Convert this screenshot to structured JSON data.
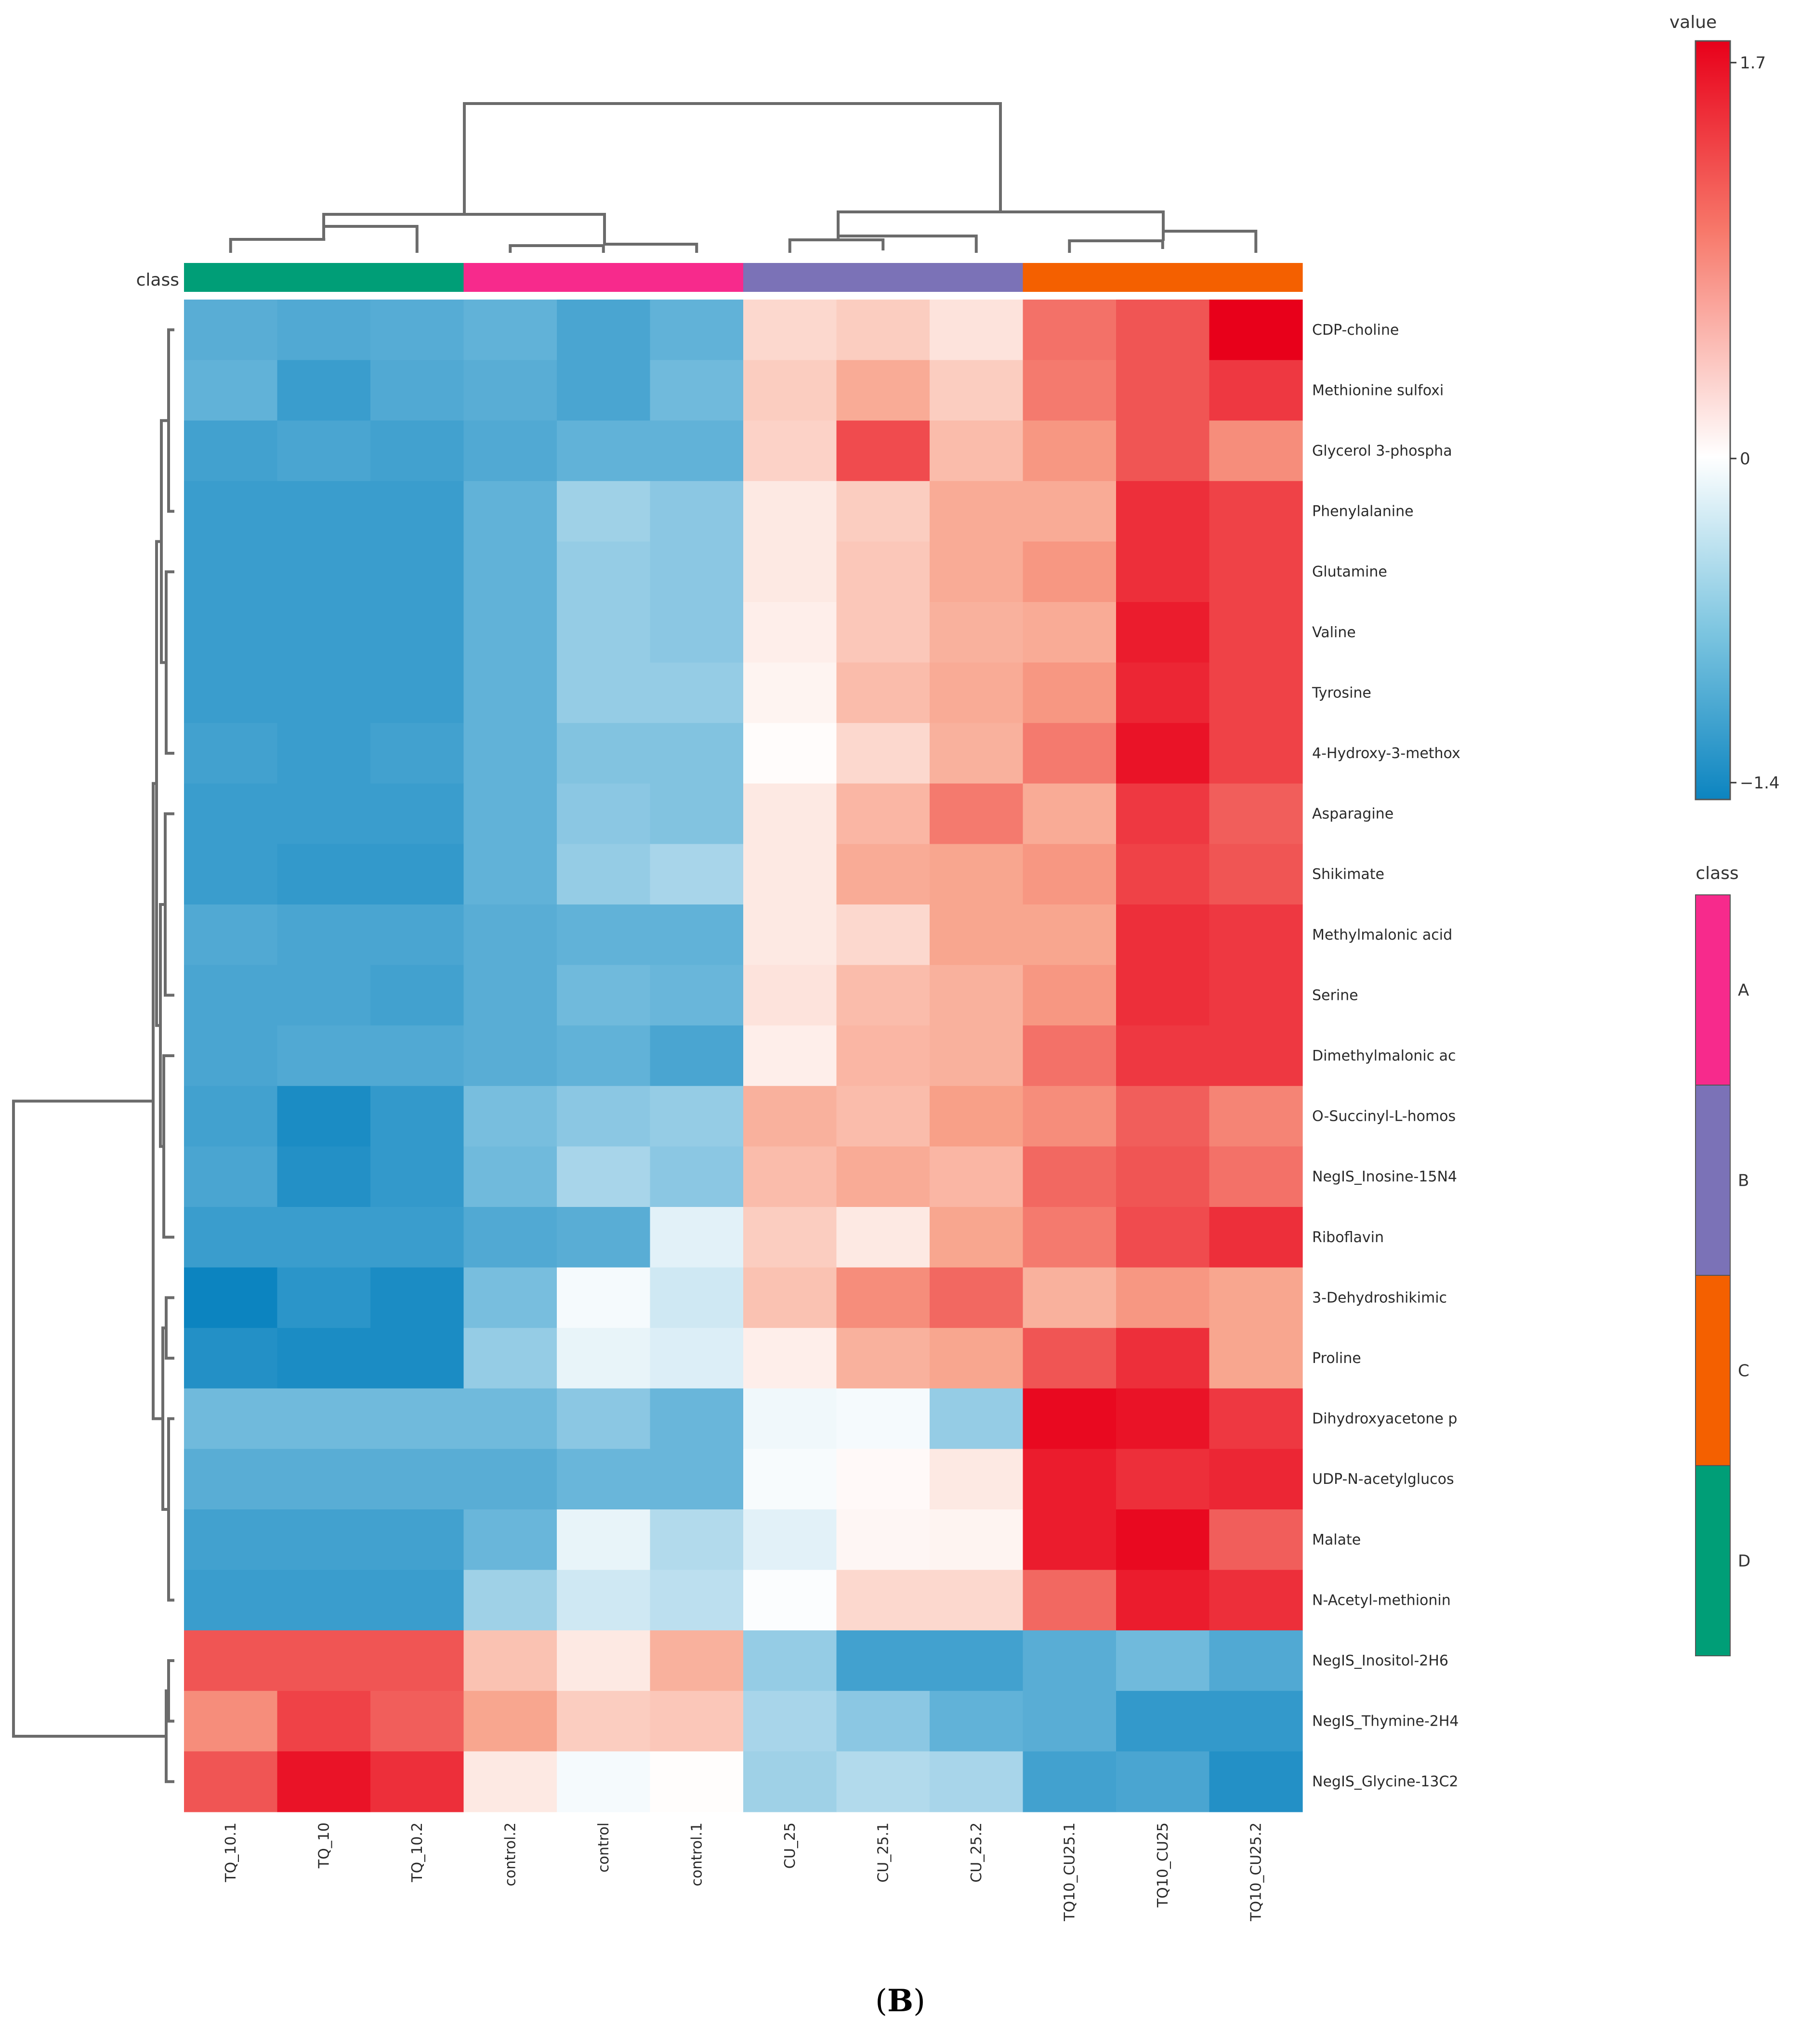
{
  "chart_data": {
    "type": "heatmap",
    "title": "",
    "caption": {
      "open": "(",
      "letter": "B",
      "close": ")"
    },
    "class_label": "class",
    "columns": [
      "TQ_10.1",
      "TQ_10",
      "TQ_10.2",
      "control.2",
      "control",
      "control.1",
      "CU_25",
      "CU_25.1",
      "CU_25.2",
      "TQ10_CU25.1",
      "TQ10_CU25",
      "TQ10_CU25.2"
    ],
    "column_classes": [
      "D",
      "D",
      "D",
      "A",
      "A",
      "A",
      "B",
      "B",
      "B",
      "C",
      "C",
      "C"
    ],
    "rows": [
      "CDP-choline",
      "Methionine sulfoxi",
      "Glycerol 3-phospha",
      "Phenylalanine",
      "Glutamine",
      "Valine",
      "Tyrosine",
      "4-Hydroxy-3-methox",
      "Asparagine",
      "Shikimate",
      "Methylmalonic acid",
      "Serine",
      "Dimethylmalonic ac",
      "O-Succinyl-L-homos",
      "NegIS_Inosine-15N4",
      "Riboflavin",
      "3-Dehydroshikimic",
      "Proline",
      "Dihydroxyacetone p",
      "UDP-N-acetylglucos",
      "Malate",
      "N-Acetyl-methionin",
      "NegIS_Inositol-2H6",
      "NegIS_Thymine-2H4",
      "NegIS_Glycine-13C2"
    ],
    "values": [
      [
        -0.9,
        -0.95,
        -0.92,
        -0.85,
        -1.0,
        -0.85,
        0.35,
        0.45,
        0.25,
        1.1,
        1.25,
        1.7
      ],
      [
        -0.85,
        -1.1,
        -0.95,
        -0.9,
        -1.0,
        -0.75,
        0.45,
        0.75,
        0.45,
        1.05,
        1.25,
        1.4
      ],
      [
        -1.05,
        -1.0,
        -1.05,
        -0.95,
        -0.85,
        -0.85,
        0.4,
        1.3,
        0.6,
        0.9,
        1.25,
        0.95
      ],
      [
        -1.1,
        -1.1,
        -1.1,
        -0.85,
        -0.5,
        -0.6,
        0.2,
        0.45,
        0.75,
        0.75,
        1.45,
        1.35
      ],
      [
        -1.1,
        -1.1,
        -1.1,
        -0.85,
        -0.55,
        -0.6,
        0.2,
        0.5,
        0.75,
        0.9,
        1.45,
        1.35
      ],
      [
        -1.1,
        -1.1,
        -1.1,
        -0.85,
        -0.55,
        -0.6,
        0.15,
        0.5,
        0.7,
        0.75,
        1.55,
        1.35
      ],
      [
        -1.1,
        -1.1,
        -1.1,
        -0.85,
        -0.55,
        -0.55,
        0.1,
        0.6,
        0.75,
        0.9,
        1.5,
        1.35
      ],
      [
        -1.05,
        -1.1,
        -1.05,
        -0.85,
        -0.65,
        -0.65,
        0.03,
        0.35,
        0.7,
        1.05,
        1.6,
        1.35
      ],
      [
        -1.1,
        -1.1,
        -1.1,
        -0.85,
        -0.6,
        -0.65,
        0.2,
        0.65,
        1.05,
        0.75,
        1.4,
        1.2
      ],
      [
        -1.1,
        -1.15,
        -1.15,
        -0.85,
        -0.55,
        -0.45,
        0.2,
        0.75,
        0.8,
        0.9,
        1.35,
        1.25
      ],
      [
        -0.95,
        -1.0,
        -1.0,
        -0.9,
        -0.85,
        -0.85,
        0.2,
        0.35,
        0.8,
        0.8,
        1.45,
        1.4
      ],
      [
        -1.0,
        -1.0,
        -1.05,
        -0.9,
        -0.75,
        -0.8,
        0.25,
        0.6,
        0.7,
        0.9,
        1.45,
        1.4
      ],
      [
        -1.0,
        -0.95,
        -0.95,
        -0.9,
        -0.85,
        -1.0,
        0.15,
        0.65,
        0.7,
        1.1,
        1.4,
        1.4
      ],
      [
        -1.05,
        -1.3,
        -1.15,
        -0.7,
        -0.6,
        -0.55,
        0.7,
        0.6,
        0.85,
        0.95,
        1.2,
        1.0
      ],
      [
        -1.0,
        -1.25,
        -1.15,
        -0.75,
        -0.45,
        -0.6,
        0.6,
        0.75,
        0.65,
        1.15,
        1.25,
        1.1
      ],
      [
        -1.1,
        -1.1,
        -1.1,
        -0.95,
        -0.9,
        -0.15,
        0.45,
        0.2,
        0.8,
        1.05,
        1.3,
        1.45
      ],
      [
        -1.4,
        -1.2,
        -1.3,
        -0.7,
        -0.05,
        -0.25,
        0.55,
        0.95,
        1.15,
        0.7,
        0.9,
        0.8
      ],
      [
        -1.25,
        -1.3,
        -1.3,
        -0.55,
        -0.12,
        -0.18,
        0.15,
        0.7,
        0.8,
        1.25,
        1.45,
        0.8
      ],
      [
        -0.75,
        -0.75,
        -0.75,
        -0.75,
        -0.6,
        -0.8,
        -0.08,
        -0.05,
        -0.55,
        1.65,
        1.6,
        1.4
      ],
      [
        -0.9,
        -0.9,
        -0.9,
        -0.9,
        -0.8,
        -0.8,
        -0.04,
        0.05,
        0.2,
        1.55,
        1.45,
        1.5
      ],
      [
        -1.05,
        -1.05,
        -1.05,
        -0.8,
        -0.12,
        -0.4,
        -0.15,
        0.08,
        0.1,
        1.55,
        1.65,
        1.2
      ],
      [
        -1.1,
        -1.1,
        -1.1,
        -0.5,
        -0.25,
        -0.35,
        -0.02,
        0.35,
        0.35,
        1.15,
        1.55,
        1.45
      ],
      [
        1.25,
        1.25,
        1.25,
        0.55,
        0.2,
        0.7,
        -0.55,
        -1.05,
        -1.05,
        -0.9,
        -0.75,
        -0.95
      ],
      [
        0.95,
        1.35,
        1.2,
        0.8,
        0.45,
        0.5,
        -0.45,
        -0.6,
        -0.85,
        -0.9,
        -1.15,
        -1.15
      ],
      [
        1.25,
        1.6,
        1.45,
        0.2,
        -0.05,
        0.02,
        -0.5,
        -0.4,
        -0.45,
        -1.05,
        -1.0,
        -1.25
      ]
    ],
    "color_scale": {
      "min": -1.4,
      "mid": 0,
      "max": 1.7,
      "low_color": "#0c84c0",
      "mid_color": "#ffffff",
      "high_color": "#e8001a"
    },
    "value_legend": {
      "title": "value",
      "ticks": [
        "1.7",
        "0",
        "−1.4"
      ]
    },
    "class_legend": {
      "title": "class",
      "items": [
        {
          "name": "A",
          "color": "#f72a8c"
        },
        {
          "name": "B",
          "color": "#7b72b7"
        },
        {
          "name": "C",
          "color": "#f46000"
        },
        {
          "name": "D",
          "color": "#009e77"
        }
      ]
    }
  }
}
